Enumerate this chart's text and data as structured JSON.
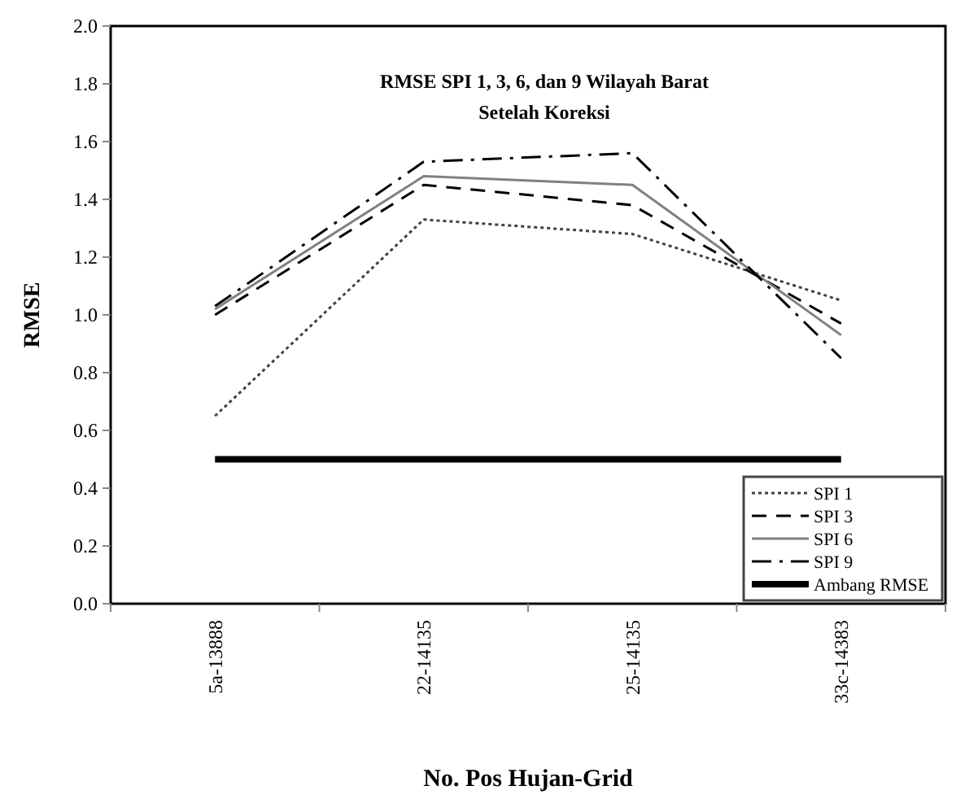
{
  "chart_data": {
    "type": "line",
    "title": "RMSE  SPI 1, 3, 6, dan  9 Wilayah Barat",
    "subtitle": "Setelah Koreksi",
    "xlabel": "No. Pos Hujan-Grid",
    "ylabel": "RMSE",
    "categories": [
      "5a-13888",
      "22-14135",
      "25-14135",
      "33c-14383"
    ],
    "ylim": [
      0,
      2
    ],
    "yticks": [
      {
        "value": 0,
        "label": "0.0"
      },
      0.2,
      0.4,
      0.6,
      0.8,
      {
        "value": 1,
        "label": "1.0"
      },
      1.2,
      1.4,
      1.6,
      1.8,
      {
        "value": 2,
        "label": "2.0"
      }
    ],
    "grid": false,
    "legend": "bottom right",
    "series": [
      {
        "name": "SPI 1",
        "color": "#404040",
        "line_style": "dotted",
        "values": [
          0.65,
          1.33,
          1.28,
          1.05
        ]
      },
      {
        "name": "SPI 3",
        "color": "#000000",
        "line_style": "dashed",
        "values": [
          1.0,
          1.45,
          1.38,
          0.97
        ]
      },
      {
        "name": "SPI 6",
        "color": "#808080",
        "line_style": "solid",
        "values": [
          1.02,
          1.48,
          1.45,
          0.93
        ]
      },
      {
        "name": "SPI 9",
        "color": "#000000",
        "line_style": "dashdot",
        "values": [
          1.03,
          1.53,
          1.56,
          0.85
        ]
      },
      {
        "name": "Ambang RMSE",
        "color": "#000000",
        "line_style": "solid",
        "values": [
          0.5,
          0.5,
          0.5,
          0.5
        ]
      }
    ]
  }
}
